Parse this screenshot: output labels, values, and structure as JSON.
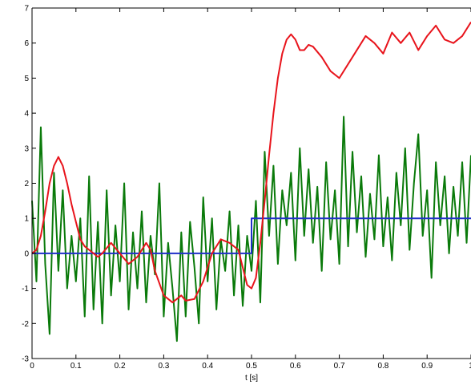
{
  "chart_data": {
    "type": "line",
    "x_label": "t [s]",
    "xlim": [
      0,
      1
    ],
    "xticks": [
      0,
      0.1,
      0.2,
      0.3,
      0.4,
      0.5,
      0.6,
      0.7,
      0.8,
      0.9,
      1
    ],
    "ylim": [
      -3,
      7
    ],
    "yticks": [
      -3,
      -2,
      -1,
      0,
      1,
      2,
      3,
      4,
      5,
      6,
      7
    ],
    "grid": false,
    "series": [
      {
        "color": "#0a7a0a",
        "x": [
          0,
          0.01,
          0.02,
          0.03,
          0.04,
          0.05,
          0.06,
          0.07,
          0.08,
          0.09,
          0.1,
          0.11,
          0.12,
          0.13,
          0.14,
          0.15,
          0.16,
          0.17,
          0.18,
          0.19,
          0.2,
          0.21,
          0.22,
          0.23,
          0.24,
          0.25,
          0.26,
          0.27,
          0.28,
          0.29,
          0.3,
          0.31,
          0.32,
          0.33,
          0.34,
          0.35,
          0.36,
          0.37,
          0.38,
          0.39,
          0.4,
          0.41,
          0.42,
          0.43,
          0.44,
          0.45,
          0.46,
          0.47,
          0.48,
          0.49,
          0.5,
          0.51,
          0.52,
          0.53,
          0.54,
          0.55,
          0.56,
          0.57,
          0.58,
          0.59,
          0.6,
          0.61,
          0.62,
          0.63,
          0.64,
          0.65,
          0.66,
          0.67,
          0.68,
          0.69,
          0.7,
          0.71,
          0.72,
          0.73,
          0.74,
          0.75,
          0.76,
          0.77,
          0.78,
          0.79,
          0.8,
          0.81,
          0.82,
          0.83,
          0.84,
          0.85,
          0.86,
          0.87,
          0.88,
          0.89,
          0.9,
          0.91,
          0.92,
          0.93,
          0.94,
          0.95,
          0.96,
          0.97,
          0.98,
          0.99,
          1
        ],
        "values": [
          1.5,
          -0.8,
          3.6,
          -0.3,
          -2.3,
          2.3,
          -0.5,
          1.8,
          -1.0,
          0.5,
          -0.8,
          1.0,
          -1.8,
          2.2,
          -1.6,
          0.9,
          -2.0,
          1.8,
          -1.2,
          0.8,
          -0.8,
          2.0,
          -1.6,
          0.6,
          -1.0,
          1.2,
          -1.4,
          0.5,
          -0.6,
          2.0,
          -1.8,
          0.3,
          -1.0,
          -2.5,
          0.6,
          -1.8,
          0.9,
          -0.4,
          -2.0,
          1.6,
          -0.8,
          1.0,
          -1.6,
          0.4,
          -0.5,
          1.2,
          -1.2,
          0.8,
          -1.5,
          0.5,
          -0.5,
          1.5,
          -1.4,
          2.9,
          0.5,
          2.5,
          -0.3,
          1.8,
          0.8,
          2.3,
          -0.2,
          3.0,
          0.5,
          2.4,
          0.3,
          1.9,
          -0.5,
          2.6,
          0.4,
          1.8,
          -0.3,
          3.9,
          0.2,
          2.9,
          0.6,
          2.2,
          -0.1,
          1.7,
          0.4,
          2.8,
          0.2,
          1.6,
          -0.2,
          2.3,
          0.8,
          3.0,
          0.1,
          2.0,
          3.4,
          0.5,
          1.8,
          -0.7,
          2.6,
          0.8,
          2.2,
          0.0,
          1.9,
          0.5,
          2.6,
          0.3,
          2.8
        ]
      },
      {
        "color": "#2030c8",
        "x": [
          0,
          0.5,
          0.5,
          1
        ],
        "values": [
          0,
          0,
          1,
          1
        ]
      },
      {
        "color": "#e8141c",
        "x": [
          0,
          0.01,
          0.02,
          0.03,
          0.04,
          0.05,
          0.06,
          0.07,
          0.08,
          0.09,
          0.1,
          0.11,
          0.12,
          0.13,
          0.14,
          0.15,
          0.16,
          0.18,
          0.2,
          0.22,
          0.24,
          0.26,
          0.27,
          0.28,
          0.3,
          0.32,
          0.34,
          0.35,
          0.37,
          0.39,
          0.41,
          0.43,
          0.45,
          0.47,
          0.48,
          0.49,
          0.5,
          0.51,
          0.52,
          0.53,
          0.54,
          0.55,
          0.56,
          0.57,
          0.58,
          0.59,
          0.6,
          0.61,
          0.62,
          0.63,
          0.64,
          0.66,
          0.68,
          0.7,
          0.72,
          0.74,
          0.76,
          0.78,
          0.8,
          0.82,
          0.84,
          0.86,
          0.88,
          0.9,
          0.92,
          0.94,
          0.96,
          0.98,
          1
        ],
        "values": [
          0,
          0.1,
          0.5,
          1.2,
          2.0,
          2.5,
          2.75,
          2.5,
          2.0,
          1.4,
          0.9,
          0.4,
          0.2,
          0.1,
          0.0,
          -0.1,
          0.0,
          0.3,
          0.0,
          -0.3,
          -0.1,
          0.3,
          0.1,
          -0.5,
          -1.2,
          -1.4,
          -1.2,
          -1.35,
          -1.3,
          -0.8,
          0.0,
          0.4,
          0.3,
          0.1,
          -0.4,
          -0.9,
          -1.0,
          -0.7,
          0.3,
          1.5,
          2.8,
          4.0,
          5.0,
          5.7,
          6.1,
          6.25,
          6.1,
          5.8,
          5.8,
          5.95,
          5.9,
          5.6,
          5.2,
          5.0,
          5.4,
          5.8,
          6.2,
          6.0,
          5.7,
          6.3,
          6.0,
          6.3,
          5.8,
          6.2,
          6.5,
          6.1,
          6.0,
          6.2,
          6.6
        ]
      }
    ]
  }
}
